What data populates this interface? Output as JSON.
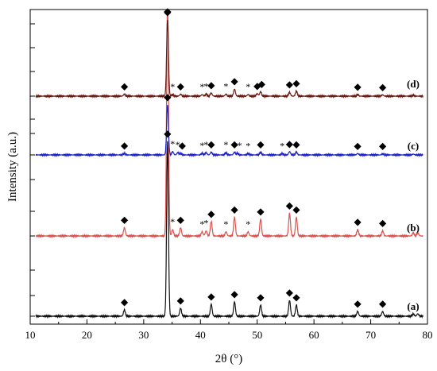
{
  "chart_data": {
    "type": "line",
    "xlabel": "2θ (°)",
    "ylabel": "Intensity (a.u.)",
    "xlim": [
      10,
      80
    ],
    "xticks": [
      10,
      20,
      30,
      40,
      50,
      60,
      70,
      80
    ],
    "grid": false,
    "legend": "none",
    "series": [
      {
        "label": "(a)",
        "color": "#111111",
        "peaks": [
          [
            26.6,
            8
          ],
          [
            34.2,
            220
          ],
          [
            36.5,
            10
          ],
          [
            41.9,
            15
          ],
          [
            46.0,
            18
          ],
          [
            50.6,
            14
          ],
          [
            55.7,
            20
          ],
          [
            56.9,
            14
          ],
          [
            67.7,
            6
          ],
          [
            72.1,
            6
          ],
          [
            77.5,
            3
          ],
          [
            78.3,
            3
          ]
        ],
        "markers": [
          {
            "x": 26.6,
            "symbol": "◆"
          },
          {
            "x": 34.2,
            "symbol": "◆"
          },
          {
            "x": 36.5,
            "symbol": "◆"
          },
          {
            "x": 41.9,
            "symbol": "◆"
          },
          {
            "x": 46.0,
            "symbol": "◆"
          },
          {
            "x": 50.6,
            "symbol": "◆"
          },
          {
            "x": 55.7,
            "symbol": "◆"
          },
          {
            "x": 56.9,
            "symbol": "◆"
          },
          {
            "x": 67.7,
            "symbol": "◆"
          },
          {
            "x": 72.1,
            "symbol": "◆"
          }
        ]
      },
      {
        "label": "(b)",
        "color": "#d9534f",
        "peaks": [
          [
            26.6,
            8
          ],
          [
            34.2,
            240
          ],
          [
            35.1,
            6
          ],
          [
            36.5,
            8
          ],
          [
            40.3,
            4
          ],
          [
            41.0,
            5
          ],
          [
            41.9,
            14
          ],
          [
            44.5,
            4
          ],
          [
            46.0,
            18
          ],
          [
            48.4,
            4
          ],
          [
            50.6,
            16
          ],
          [
            55.7,
            22
          ],
          [
            56.9,
            18
          ],
          [
            67.7,
            6
          ],
          [
            72.1,
            5
          ],
          [
            77.5,
            3
          ],
          [
            78.3,
            3
          ]
        ],
        "markers": [
          {
            "x": 26.6,
            "symbol": "◆"
          },
          {
            "x": 34.2,
            "symbol": "◆"
          },
          {
            "x": 35.1,
            "symbol": "*"
          },
          {
            "x": 36.5,
            "symbol": "◆"
          },
          {
            "x": 40.3,
            "symbol": "*"
          },
          {
            "x": 41.0,
            "symbol": "*"
          },
          {
            "x": 41.9,
            "symbol": "◆"
          },
          {
            "x": 44.5,
            "symbol": "*"
          },
          {
            "x": 46.0,
            "symbol": "◆"
          },
          {
            "x": 48.4,
            "symbol": "*"
          },
          {
            "x": 50.6,
            "symbol": "◆"
          },
          {
            "x": 55.7,
            "symbol": "◆"
          },
          {
            "x": 56.9,
            "symbol": "◆"
          },
          {
            "x": 67.7,
            "symbol": "◆"
          },
          {
            "x": 72.1,
            "symbol": "◆"
          }
        ]
      },
      {
        "label": "(c)",
        "color": "#1f24c8",
        "peaks": [
          [
            26.6,
            6
          ],
          [
            34.2,
            180
          ],
          [
            35.1,
            12
          ],
          [
            36.0,
            8
          ],
          [
            36.5,
            6
          ],
          [
            40.3,
            6
          ],
          [
            41.0,
            8
          ],
          [
            41.9,
            10
          ],
          [
            44.5,
            8
          ],
          [
            46.0,
            10
          ],
          [
            46.5,
            6
          ],
          [
            48.4,
            5
          ],
          [
            50.6,
            10
          ],
          [
            54.4,
            5
          ],
          [
            55.7,
            12
          ],
          [
            56.9,
            10
          ],
          [
            67.7,
            5
          ],
          [
            72.1,
            4
          ],
          [
            77.5,
            3
          ]
        ],
        "markers": [
          {
            "x": 26.6,
            "symbol": "◆"
          },
          {
            "x": 34.2,
            "symbol": "◆"
          },
          {
            "x": 35.1,
            "symbol": "*"
          },
          {
            "x": 36.0,
            "symbol": "*"
          },
          {
            "x": 36.8,
            "symbol": "◆"
          },
          {
            "x": 40.3,
            "symbol": "*"
          },
          {
            "x": 41.0,
            "symbol": "*"
          },
          {
            "x": 41.9,
            "symbol": "◆"
          },
          {
            "x": 44.5,
            "symbol": "*"
          },
          {
            "x": 46.0,
            "symbol": "◆"
          },
          {
            "x": 46.9,
            "symbol": "*"
          },
          {
            "x": 48.4,
            "symbol": "*"
          },
          {
            "x": 50.6,
            "symbol": "◆"
          },
          {
            "x": 54.4,
            "symbol": "*"
          },
          {
            "x": 55.7,
            "symbol": "◆"
          },
          {
            "x": 56.9,
            "symbol": "◆"
          },
          {
            "x": 67.7,
            "symbol": "◆"
          },
          {
            "x": 72.1,
            "symbol": "◆"
          }
        ]
      },
      {
        "label": "(d)",
        "color": "#6b1a12",
        "peaks": [
          [
            26.6,
            6
          ],
          [
            34.2,
            240
          ],
          [
            35.1,
            5
          ],
          [
            36.5,
            6
          ],
          [
            40.3,
            5
          ],
          [
            41.0,
            6
          ],
          [
            41.9,
            10
          ],
          [
            44.5,
            6
          ],
          [
            46.0,
            22
          ],
          [
            48.4,
            5
          ],
          [
            50.0,
            8
          ],
          [
            50.6,
            14
          ],
          [
            55.7,
            12
          ],
          [
            56.9,
            16
          ],
          [
            67.7,
            5
          ],
          [
            72.1,
            4
          ],
          [
            77.5,
            3
          ]
        ],
        "markers": [
          {
            "x": 26.6,
            "symbol": "◆"
          },
          {
            "x": 34.2,
            "symbol": "◆"
          },
          {
            "x": 35.1,
            "symbol": "*"
          },
          {
            "x": 36.5,
            "symbol": "◆"
          },
          {
            "x": 40.3,
            "symbol": "*"
          },
          {
            "x": 41.0,
            "symbol": "*"
          },
          {
            "x": 41.9,
            "symbol": "◆"
          },
          {
            "x": 44.5,
            "symbol": "*"
          },
          {
            "x": 46.0,
            "symbol": "◆"
          },
          {
            "x": 48.4,
            "symbol": "*"
          },
          {
            "x": 50.0,
            "symbol": "◆"
          },
          {
            "x": 50.8,
            "symbol": "◆"
          },
          {
            "x": 55.7,
            "symbol": "◆"
          },
          {
            "x": 56.9,
            "symbol": "◆"
          },
          {
            "x": 67.7,
            "symbol": "◆"
          },
          {
            "x": 72.1,
            "symbol": "◆"
          }
        ]
      }
    ]
  }
}
